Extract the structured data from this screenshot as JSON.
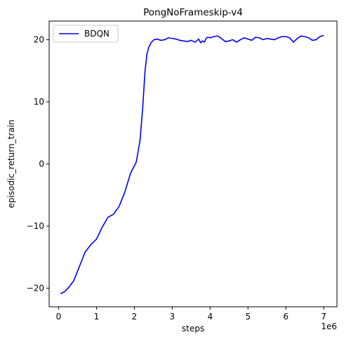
{
  "chart_data": {
    "type": "line",
    "title": "PongNoFrameskip-v4",
    "xlabel": "steps",
    "ylabel": "episodic_return_train",
    "x_scale_label": "1e6",
    "xlim": [
      -0.25,
      7.35
    ],
    "ylim": [
      -23.0,
      23.0
    ],
    "xticks": [
      0,
      1,
      2,
      3,
      4,
      5,
      6,
      7
    ],
    "yticks": [
      -20,
      -10,
      0,
      10,
      20
    ],
    "grid": false,
    "legend_position": "top-left",
    "series": [
      {
        "name": "BDQN",
        "color": "#0000ee",
        "x": [
          0.05,
          0.15,
          0.25,
          0.4,
          0.55,
          0.7,
          0.85,
          1.0,
          1.15,
          1.3,
          1.45,
          1.6,
          1.75,
          1.9,
          2.05,
          2.15,
          2.22,
          2.28,
          2.33,
          2.38,
          2.45,
          2.52,
          2.6,
          2.7,
          2.8,
          2.9,
          3.0,
          3.1,
          3.2,
          3.3,
          3.4,
          3.5,
          3.6,
          3.7,
          3.75,
          3.8,
          3.85,
          3.9,
          3.95,
          4.0,
          4.1,
          4.2,
          4.3,
          4.4,
          4.5,
          4.6,
          4.7,
          4.8,
          4.9,
          5.0,
          5.1,
          5.2,
          5.3,
          5.4,
          5.5,
          5.6,
          5.7,
          5.8,
          5.9,
          6.0,
          6.1,
          6.2,
          6.3,
          6.4,
          6.5,
          6.6,
          6.7,
          6.8,
          6.9,
          7.0
        ],
        "y": [
          -20.9,
          -20.6,
          -20.0,
          -18.8,
          -16.5,
          -14.2,
          -13.0,
          -12.1,
          -10.2,
          -8.6,
          -8.1,
          -6.8,
          -4.5,
          -1.5,
          0.3,
          3.8,
          9.0,
          14.8,
          17.6,
          18.8,
          19.6,
          20.0,
          20.1,
          19.9,
          20.0,
          20.3,
          20.2,
          20.1,
          19.9,
          19.8,
          19.7,
          19.9,
          19.6,
          20.1,
          19.5,
          19.8,
          19.6,
          20.3,
          20.4,
          20.3,
          20.5,
          20.6,
          20.2,
          19.7,
          19.8,
          20.0,
          19.6,
          20.0,
          20.3,
          20.1,
          19.9,
          20.4,
          20.3,
          20.0,
          20.2,
          20.1,
          20.0,
          20.3,
          20.5,
          20.5,
          20.3,
          19.6,
          20.2,
          20.6,
          20.5,
          20.3,
          19.9,
          20.0,
          20.5,
          20.7
        ]
      }
    ]
  }
}
